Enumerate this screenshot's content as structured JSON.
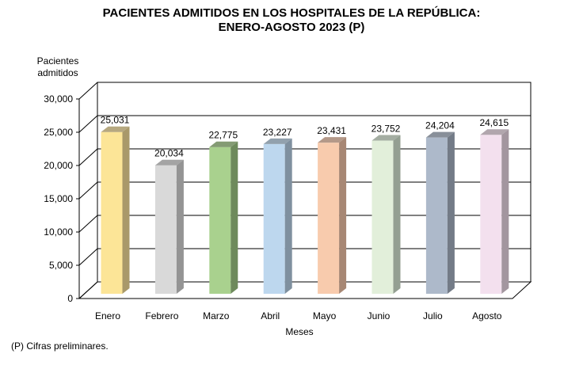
{
  "chart_data": {
    "type": "bar",
    "title_lines": [
      "PACIENTES  ADMITIDOS EN LOS HOSPITALES DE LA REPÚBLICA:",
      "ENERO-AGOSTO 2023 (P)"
    ],
    "xlabel": "Meses",
    "ylabel_lines": [
      "Pacientes",
      "admitidos"
    ],
    "categories": [
      "Enero",
      "Febrero",
      "Marzo",
      "Abril",
      "Mayo",
      "Junio",
      "Julio",
      "Agosto"
    ],
    "values": [
      25031,
      20034,
      22775,
      23227,
      23431,
      23752,
      24204,
      24615
    ],
    "value_labels": [
      "25,031",
      "20,034",
      "22,775",
      "23,227",
      "23,431",
      "23,752",
      "24,204",
      "24,615"
    ],
    "ylim": [
      0,
      30000
    ],
    "yticks": [
      0,
      5000,
      10000,
      15000,
      20000,
      25000,
      30000
    ],
    "ytick_labels": [
      "0",
      "5,000",
      "10,000",
      "15,000",
      "20,000",
      "25,000",
      "30,000"
    ],
    "grid": true,
    "style": "3d-column",
    "bar_colors": [
      "#fce597",
      "#d9d9d9",
      "#a9d18e",
      "#bdd7ee",
      "#f8cbad",
      "#e2efda",
      "#adb9ca",
      "#f3e0ee"
    ],
    "bar_side_colors": [
      "#a9996a",
      "#949494",
      "#6e8a5c",
      "#7f909f",
      "#a78774",
      "#949f92",
      "#737b87",
      "#a3969f"
    ],
    "legend": "none"
  },
  "footnote": "(P) Cifras  preliminares."
}
